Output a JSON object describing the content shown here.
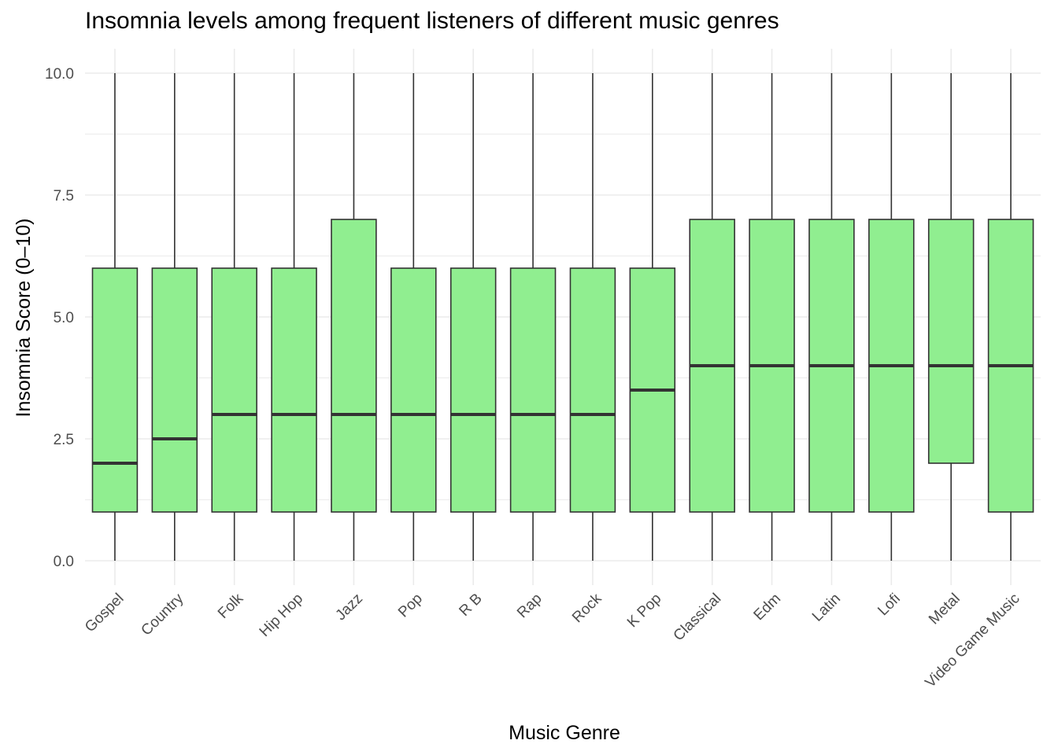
{
  "chart_data": {
    "type": "boxplot",
    "title": "Insomnia levels among frequent listeners of different music genres",
    "xlabel": "Music Genre",
    "ylabel": "Insomnia Score (0–10)",
    "ylim": [
      -0.5,
      10.5
    ],
    "y_ticks": [
      "0.0",
      "2.5",
      "5.0",
      "7.5",
      "10.0"
    ],
    "grid": true,
    "legend": "none",
    "colors": {
      "box_fill": "#90ee90",
      "box_stroke": "#333333",
      "grid": "#ebebeb"
    },
    "categories": [
      "Gospel",
      "Country",
      "Folk",
      "Hip Hop",
      "Jazz",
      "Pop",
      "R B",
      "Rap",
      "Rock",
      "K Pop",
      "Classical",
      "Edm",
      "Latin",
      "Lofi",
      "Metal",
      "Video Game Music"
    ],
    "boxes": [
      {
        "min": 0,
        "q1": 1,
        "median": 2,
        "q3": 6,
        "max": 10
      },
      {
        "min": 0,
        "q1": 1,
        "median": 2.5,
        "q3": 6,
        "max": 10
      },
      {
        "min": 0,
        "q1": 1,
        "median": 3,
        "q3": 6,
        "max": 10
      },
      {
        "min": 0,
        "q1": 1,
        "median": 3,
        "q3": 6,
        "max": 10
      },
      {
        "min": 0,
        "q1": 1,
        "median": 3,
        "q3": 7,
        "max": 10
      },
      {
        "min": 0,
        "q1": 1,
        "median": 3,
        "q3": 6,
        "max": 10
      },
      {
        "min": 0,
        "q1": 1,
        "median": 3,
        "q3": 6,
        "max": 10
      },
      {
        "min": 0,
        "q1": 1,
        "median": 3,
        "q3": 6,
        "max": 10
      },
      {
        "min": 0,
        "q1": 1,
        "median": 3,
        "q3": 6,
        "max": 10
      },
      {
        "min": 0,
        "q1": 1,
        "median": 3.5,
        "q3": 6,
        "max": 10
      },
      {
        "min": 0,
        "q1": 1,
        "median": 4,
        "q3": 7,
        "max": 10
      },
      {
        "min": 0,
        "q1": 1,
        "median": 4,
        "q3": 7,
        "max": 10
      },
      {
        "min": 0,
        "q1": 1,
        "median": 4,
        "q3": 7,
        "max": 10
      },
      {
        "min": 0,
        "q1": 1,
        "median": 4,
        "q3": 7,
        "max": 10
      },
      {
        "min": 0,
        "q1": 2,
        "median": 4,
        "q3": 7,
        "max": 10
      },
      {
        "min": 0,
        "q1": 1,
        "median": 4,
        "q3": 7,
        "max": 10
      }
    ]
  }
}
